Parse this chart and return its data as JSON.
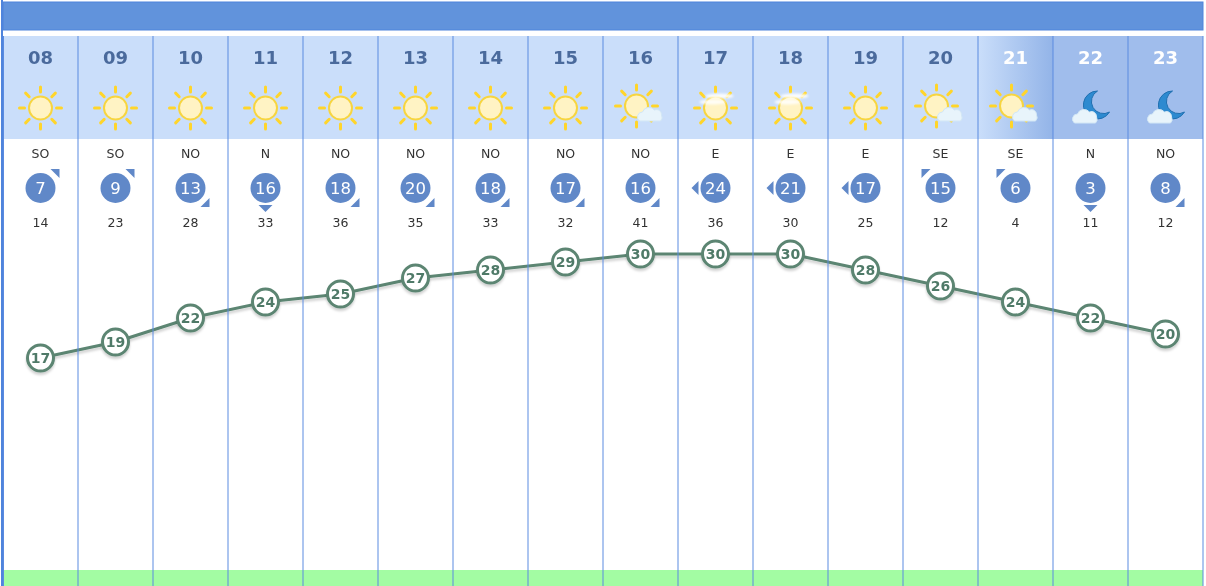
{
  "chart_data": [
    {
      "type": "line",
      "categories": [
        "08",
        "09",
        "10",
        "11",
        "12",
        "13",
        "14",
        "15",
        "16",
        "17",
        "18",
        "19",
        "20",
        "21",
        "22",
        "23"
      ],
      "values": [
        17,
        19,
        22,
        24,
        25,
        27,
        28,
        29,
        30,
        30,
        30,
        28,
        26,
        24,
        22,
        20
      ],
      "color": "#5b8572",
      "data_labels": true,
      "marker": "circle"
    },
    {
      "type": "other",
      "color": "#6088c8",
      "annotations": [
        "SO",
        "SO",
        "NO",
        "N",
        "NO",
        "NO",
        "NO",
        "NO",
        "NO",
        "E",
        "E",
        "E",
        "SE",
        "SE",
        "N",
        "NO",
        "7",
        "9",
        "13",
        "16",
        "18",
        "20",
        "18",
        "17",
        "16",
        "24",
        "21",
        "17",
        "15",
        "6",
        "3",
        "8",
        "14",
        "23",
        "28",
        "33",
        "36",
        "35",
        "33",
        "32",
        "41",
        "36",
        "30",
        "25",
        "12",
        "4",
        "11",
        "12"
      ]
    }
  ]
}
